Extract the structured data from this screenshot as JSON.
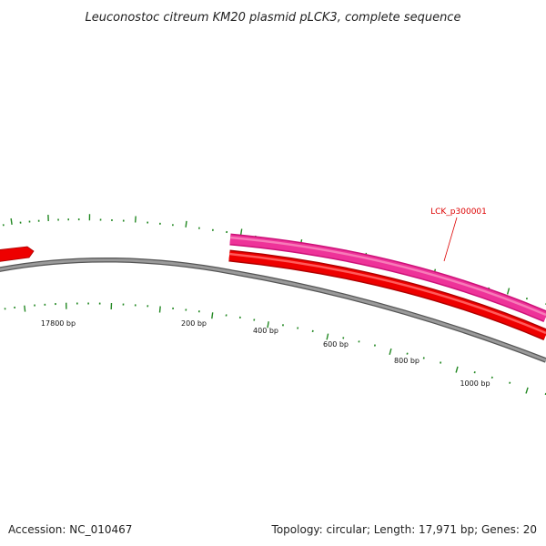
{
  "title": "Leuconostoc citreum KM20 plasmid pLCK3, complete sequence",
  "footer": {
    "accession": "Accession: NC_010467",
    "summary": "Topology: circular; Length: 17,971 bp; Genes: 20"
  },
  "scale_labels": [
    "17800 bp",
    "200 bp",
    "400 bp",
    "600 bp",
    "800 bp",
    "1000 bp"
  ],
  "gene_callout": "LCK_p300001",
  "colors": {
    "backbone": "#808080",
    "forward_gene": "#ee3399",
    "reverse_gene": "#ee0000",
    "tick": "#228822",
    "callout": "#dd0000"
  }
}
